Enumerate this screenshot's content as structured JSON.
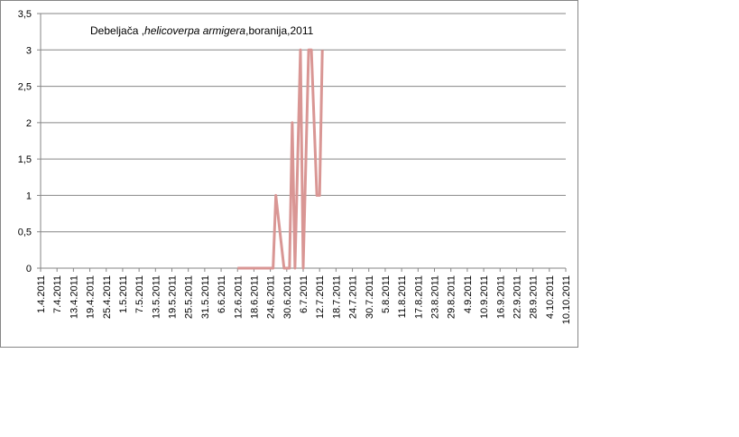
{
  "chart_data": {
    "type": "line",
    "title": [
      "Debeljača ,",
      "helicoverpa armigera",
      ",boranija,2011"
    ],
    "x": [
      "12.6.2011",
      "25.6.2011",
      "26.6.2011",
      "29.6.2011",
      "1.7.2011",
      "2.7.2011",
      "3.7.2011",
      "5.7.2011",
      "6.7.2011",
      "8.7.2011",
      "9.7.2011",
      "11.7.2011",
      "12.7.2011",
      "13.7.2011"
    ],
    "series": [
      {
        "color": "#d99694",
        "values": [
          0,
          0,
          1,
          0,
          0,
          2,
          0,
          3,
          0,
          3,
          3,
          1,
          1,
          3
        ]
      }
    ],
    "xlim": [
      "1.4.2011",
      "10.10.2011"
    ],
    "xticks": [
      "1.4.2011",
      "7.4.2011",
      "13.4.2011",
      "19.4.2011",
      "25.4.2011",
      "1.5.2011",
      "7.5.2011",
      "13.5.2011",
      "19.5.2011",
      "25.5.2011",
      "31.5.2011",
      "6.6.2011",
      "12.6.2011",
      "18.6.2011",
      "24.6.2011",
      "30.6.2011",
      "6.7.2011",
      "12.7.2011",
      "18.7.2011",
      "24.7.2011",
      "30.7.2011",
      "5.8.2011",
      "11.8.2011",
      "17.8.2011",
      "23.8.2011",
      "29.8.2011",
      "4.9.2011",
      "10.9.2011",
      "16.9.2011",
      "22.9.2011",
      "28.9.2011",
      "4.10.2011",
      "10.10.2011"
    ],
    "ylim": [
      0,
      3.5
    ],
    "yticks": [
      0,
      {
        "value": 0.5,
        "label": "0,5"
      },
      1,
      {
        "value": 1.5,
        "label": "1,5"
      },
      2,
      {
        "value": 2.5,
        "label": "2,5"
      },
      3,
      {
        "value": 3.5,
        "label": "3,5"
      }
    ],
    "grid": true
  }
}
